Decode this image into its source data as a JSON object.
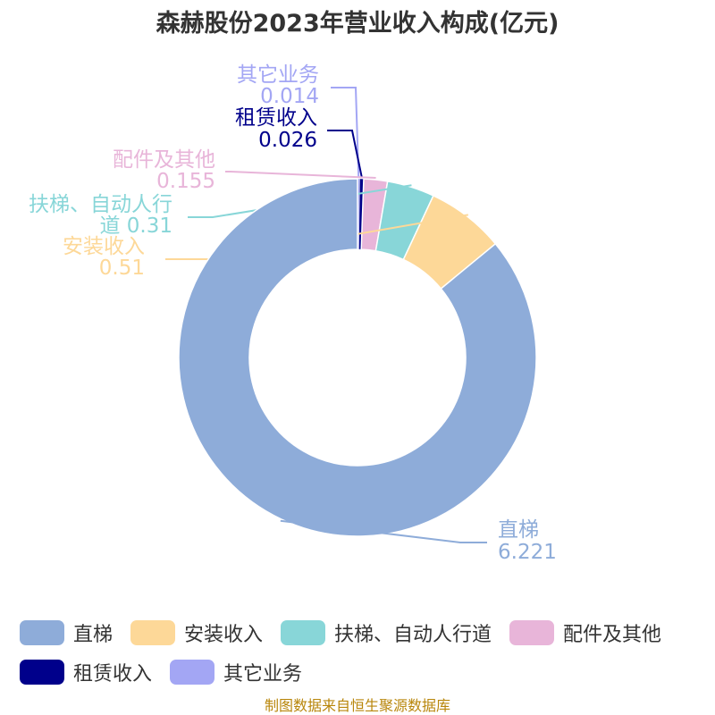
{
  "title": "森赫股份2023年营业收入构成(亿元)",
  "source": "制图数据来自恒生聚源数据库",
  "chart_data": {
    "type": "pie",
    "donut": true,
    "title": "森赫股份2023年营业收入构成(亿元)",
    "legend_position": "bottom",
    "series": [
      {
        "name": "直梯",
        "value": 6.221,
        "color": "#8eacd9",
        "label_lines": [
          "直梯",
          "6.221"
        ]
      },
      {
        "name": "安装收入",
        "value": 0.51,
        "color": "#fdd898",
        "label_lines": [
          "安装收入",
          "0.51"
        ]
      },
      {
        "name": "扶梯、自动人行道",
        "value": 0.31,
        "color": "#88d6d8",
        "label_lines": [
          "扶梯、自动人行",
          "道 0.31"
        ]
      },
      {
        "name": "配件及其他",
        "value": 0.155,
        "color": "#e8b5d9",
        "label_lines": [
          "配件及其他",
          "0.155"
        ]
      },
      {
        "name": "租赁收入",
        "value": 0.026,
        "color": "#00008b",
        "label_lines": [
          "租赁收入",
          "0.026"
        ]
      },
      {
        "name": "其它业务",
        "value": 0.014,
        "color": "#a3a6f4",
        "label_lines": [
          "其它业务",
          "0.014"
        ]
      }
    ]
  }
}
